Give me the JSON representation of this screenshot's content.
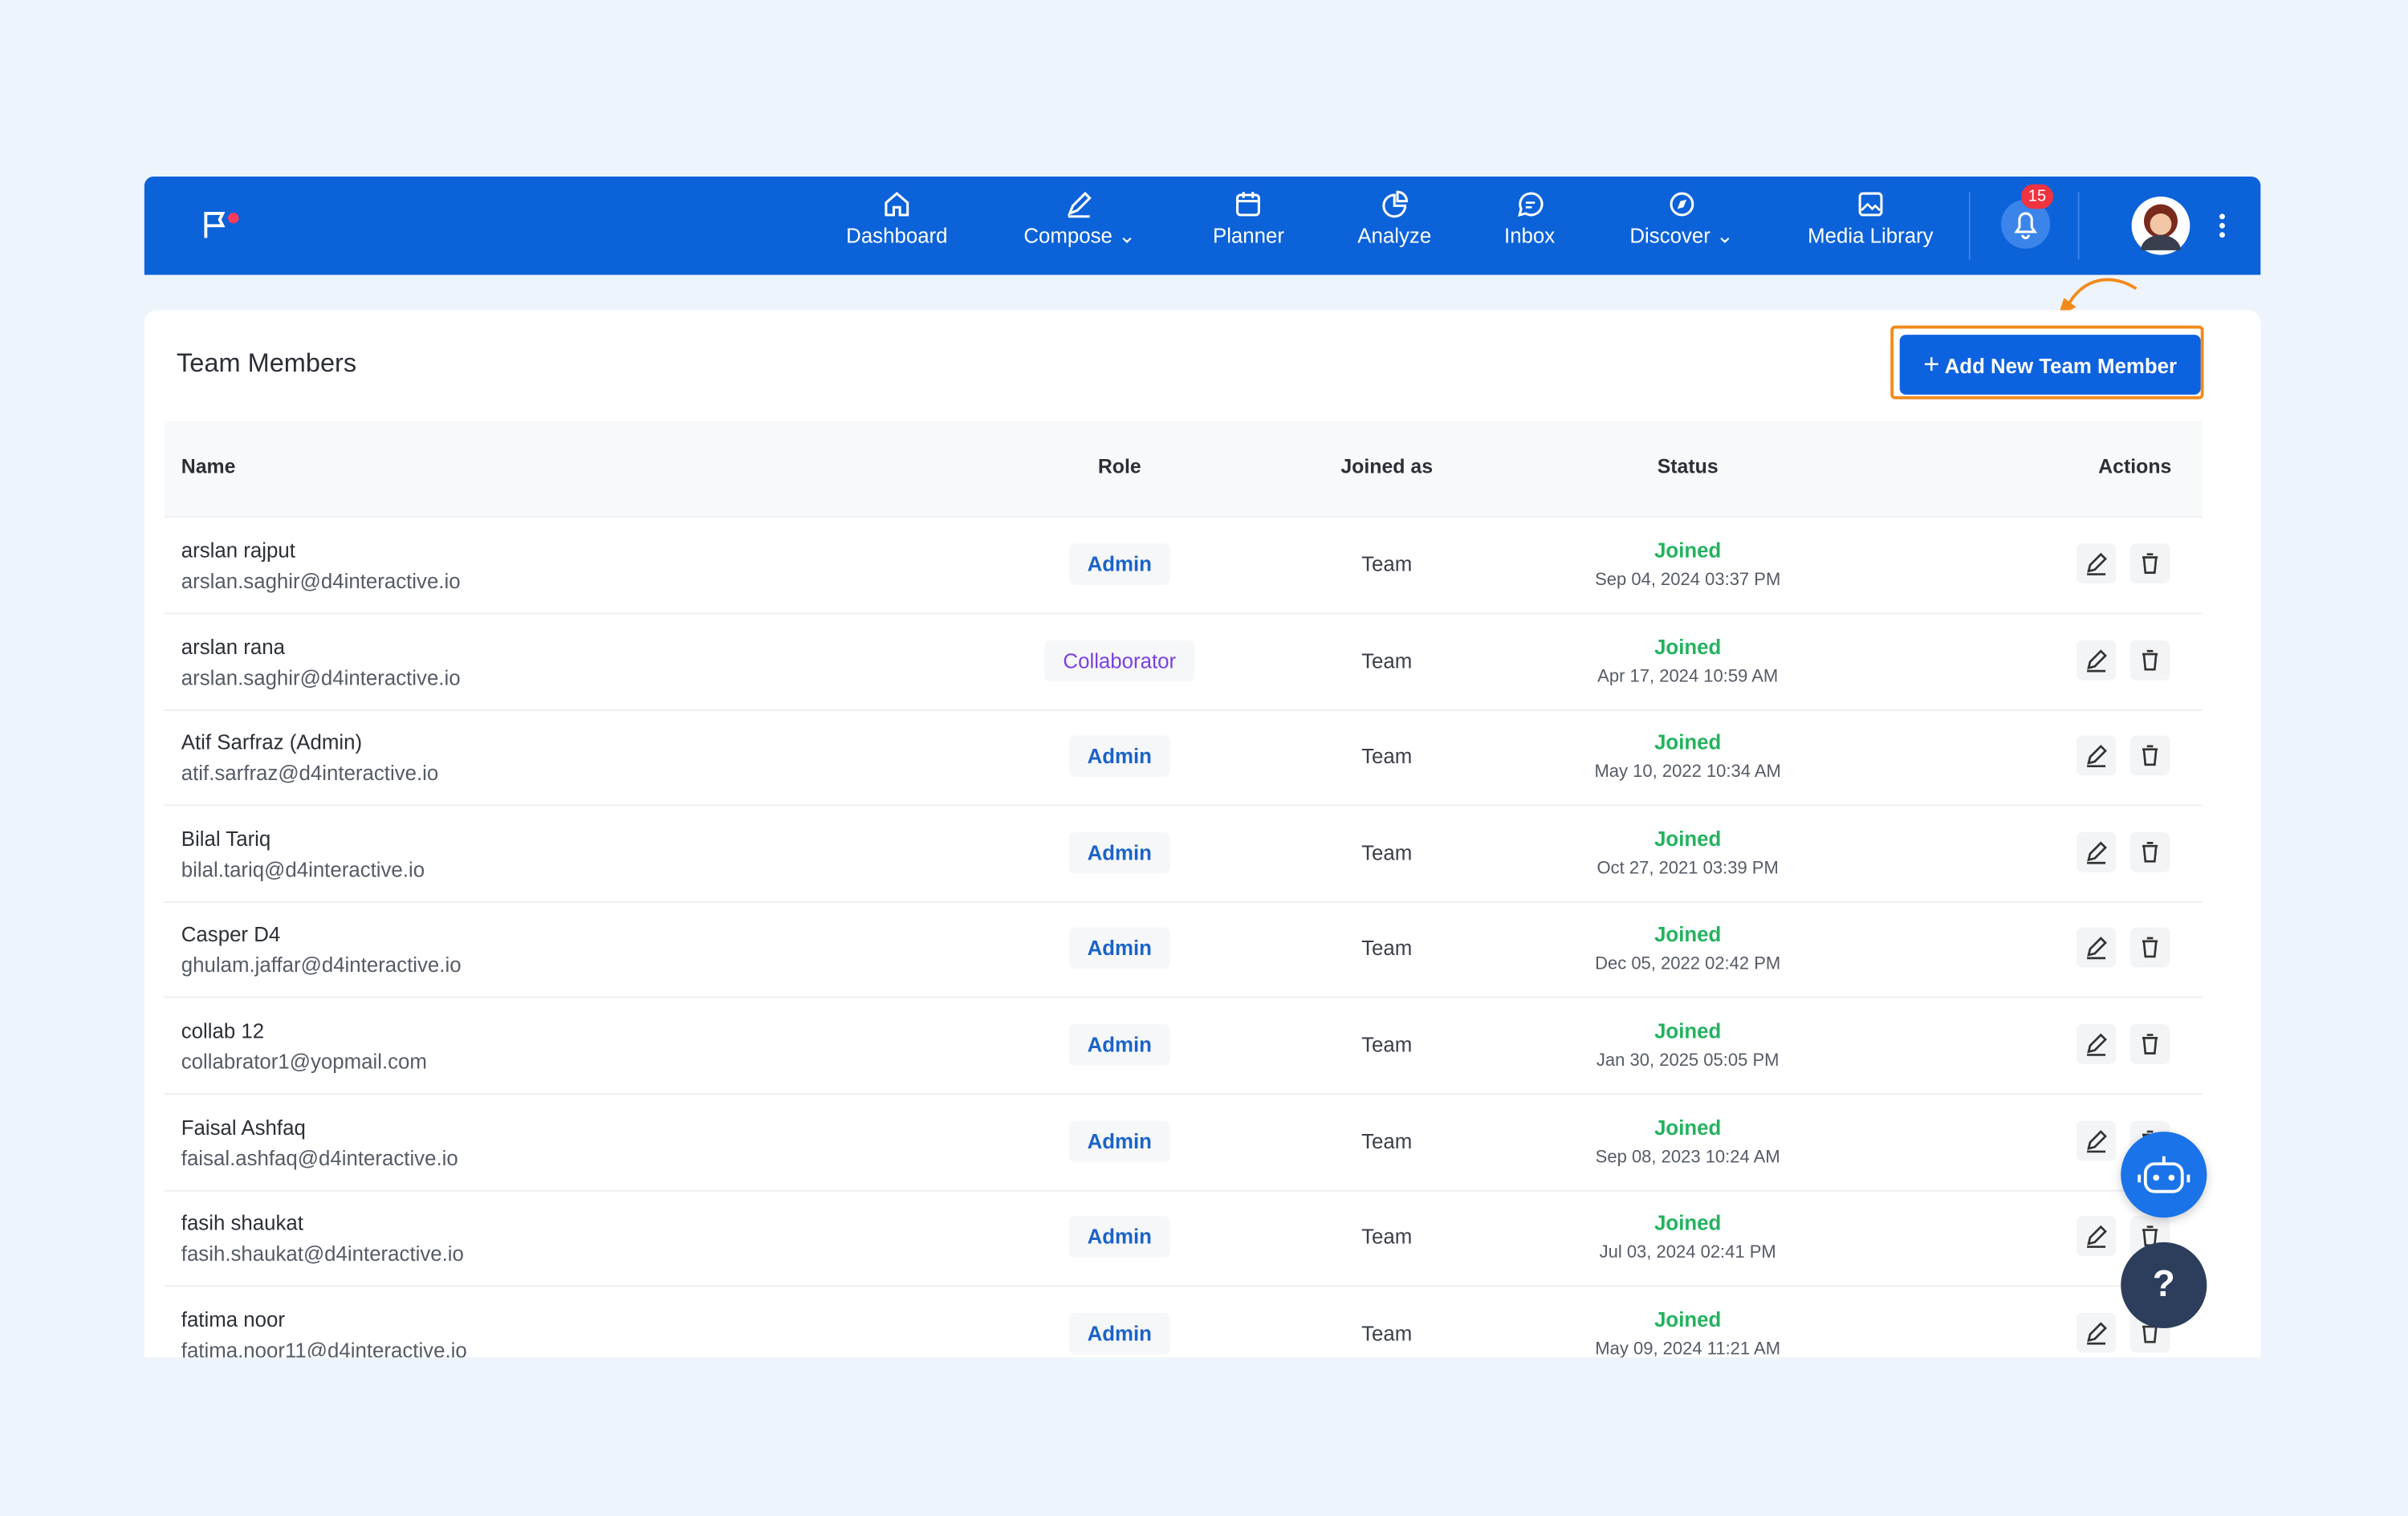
{
  "nav": {
    "items": [
      "Dashboard",
      "Compose",
      "Planner",
      "Analyze",
      "Inbox",
      "Discover",
      "Media Library"
    ],
    "notification_count": 15
  },
  "header": {
    "title": "Team Members",
    "button": "Add New Team Member"
  },
  "help": "?",
  "table": {
    "columns": [
      "Name",
      "Role",
      "Joined as",
      "Status",
      "Actions"
    ],
    "rows": [
      {
        "name": "arslan rajput",
        "email": "arslan.saghir@d4interactive.io",
        "role": "Admin",
        "joined_as": "Team",
        "status": "Joined",
        "joined_at": "Sep 04, 2024 03:37 PM"
      },
      {
        "name": "arslan rana",
        "email": "arslan.saghir@d4interactive.io",
        "role": "Collaborator",
        "joined_as": "Team",
        "status": "Joined",
        "joined_at": "Apr 17, 2024 10:59 AM"
      },
      {
        "name": "Atif Sarfraz (Admin)",
        "email": "atif.sarfraz@d4interactive.io",
        "role": "Admin",
        "joined_as": "Team",
        "status": "Joined",
        "joined_at": "May 10, 2022 10:34 AM"
      },
      {
        "name": "Bilal Tariq",
        "email": "bilal.tariq@d4interactive.io",
        "role": "Admin",
        "joined_as": "Team",
        "status": "Joined",
        "joined_at": "Oct 27, 2021 03:39 PM"
      },
      {
        "name": "Casper D4",
        "email": "ghulam.jaffar@d4interactive.io",
        "role": "Admin",
        "joined_as": "Team",
        "status": "Joined",
        "joined_at": "Dec 05, 2022 02:42 PM"
      },
      {
        "name": "collab 12",
        "email": "collabrator1@yopmail.com",
        "role": "Admin",
        "joined_as": "Team",
        "status": "Joined",
        "joined_at": "Jan 30, 2025 05:05 PM"
      },
      {
        "name": "Faisal Ashfaq",
        "email": "faisal.ashfaq@d4interactive.io",
        "role": "Admin",
        "joined_as": "Team",
        "status": "Joined",
        "joined_at": "Sep 08, 2023 10:24 AM"
      },
      {
        "name": "fasih shaukat",
        "email": "fasih.shaukat@d4interactive.io",
        "role": "Admin",
        "joined_as": "Team",
        "status": "Joined",
        "joined_at": "Jul 03, 2024 02:41 PM"
      },
      {
        "name": "fatima noor",
        "email": "fatima.noor11@d4interactive.io",
        "role": "Admin",
        "joined_as": "Team",
        "status": "Joined",
        "joined_at": "May 09, 2024 11:21 AM"
      }
    ]
  }
}
